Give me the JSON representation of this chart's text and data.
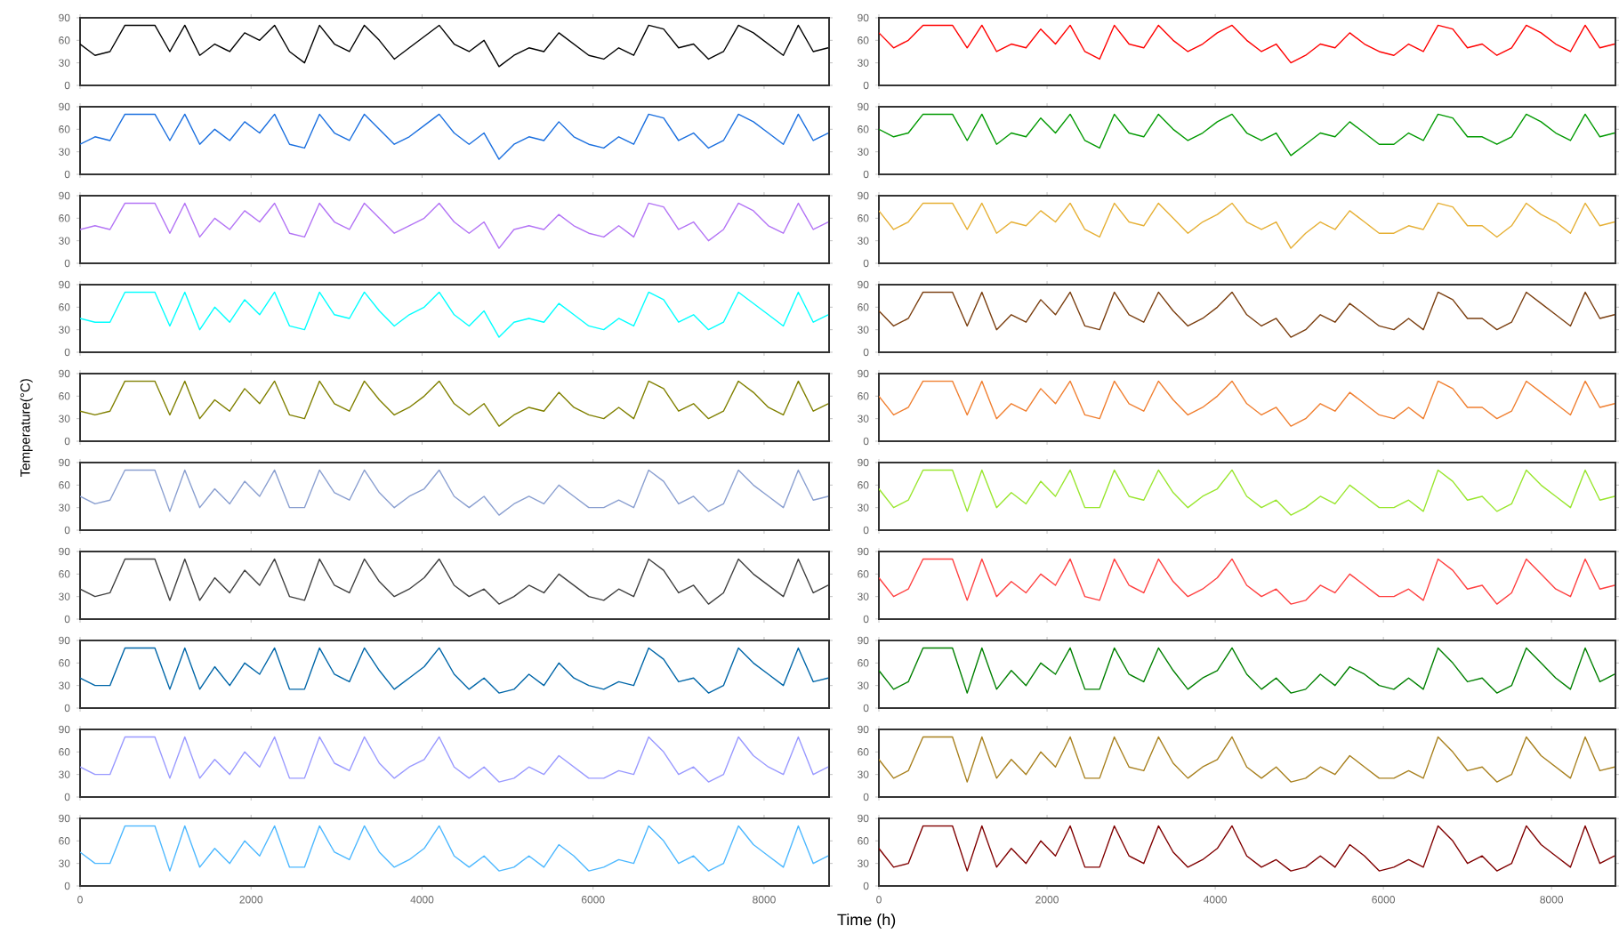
{
  "chart_data": [
    {
      "type": "line",
      "color": "#000000",
      "x": [
        0,
        175,
        350,
        525,
        700,
        875,
        1050,
        1225,
        1400,
        1575,
        1750,
        1925,
        2100,
        2275,
        2450,
        2625,
        2800,
        2975,
        3150,
        3325,
        3500,
        3675,
        3850,
        4025,
        4200,
        4375,
        4550,
        4725,
        4900,
        5075,
        5250,
        5425,
        5600,
        5775,
        5950,
        6125,
        6300,
        6475,
        6650,
        6825,
        7000,
        7175,
        7350,
        7525,
        7700,
        7875,
        8050,
        8225,
        8400,
        8575,
        8750
      ],
      "values": [
        55,
        40,
        45,
        80,
        80,
        80,
        45,
        80,
        40,
        55,
        45,
        70,
        60,
        80,
        45,
        30,
        80,
        55,
        45,
        80,
        60,
        35,
        50,
        65,
        80,
        55,
        45,
        60,
        25,
        40,
        50,
        45,
        70,
        55,
        40,
        35,
        50,
        40,
        80,
        75,
        50,
        55,
        35,
        45,
        80,
        70,
        55,
        40,
        80,
        45,
        50
      ],
      "xlim": [
        0,
        8760
      ],
      "ylim": [
        0,
        90
      ],
      "xticks": [
        0,
        2000,
        4000,
        6000,
        8000
      ],
      "yticks": [
        0,
        30,
        60,
        90
      ],
      "tick_labels": "y"
    },
    {
      "type": "line",
      "color": "#ff0000",
      "x": [
        0,
        175,
        350,
        525,
        700,
        875,
        1050,
        1225,
        1400,
        1575,
        1750,
        1925,
        2100,
        2275,
        2450,
        2625,
        2800,
        2975,
        3150,
        3325,
        3500,
        3675,
        3850,
        4025,
        4200,
        4375,
        4550,
        4725,
        4900,
        5075,
        5250,
        5425,
        5600,
        5775,
        5950,
        6125,
        6300,
        6475,
        6650,
        6825,
        7000,
        7175,
        7350,
        7525,
        7700,
        7875,
        8050,
        8225,
        8400,
        8575,
        8750
      ],
      "values": [
        70,
        50,
        60,
        80,
        80,
        80,
        50,
        80,
        45,
        55,
        50,
        75,
        55,
        80,
        45,
        35,
        80,
        55,
        50,
        80,
        60,
        45,
        55,
        70,
        80,
        60,
        45,
        55,
        30,
        40,
        55,
        50,
        70,
        55,
        45,
        40,
        55,
        45,
        80,
        75,
        50,
        55,
        40,
        50,
        80,
        70,
        55,
        45,
        80,
        50,
        55
      ],
      "xlim": [
        0,
        8760
      ],
      "ylim": [
        0,
        90
      ],
      "xticks": [
        0,
        2000,
        4000,
        6000,
        8000
      ],
      "yticks": [
        0,
        30,
        60,
        90
      ],
      "tick_labels": "y"
    },
    {
      "type": "line",
      "color": "#1a6fdf",
      "x": [
        0,
        175,
        350,
        525,
        700,
        875,
        1050,
        1225,
        1400,
        1575,
        1750,
        1925,
        2100,
        2275,
        2450,
        2625,
        2800,
        2975,
        3150,
        3325,
        3500,
        3675,
        3850,
        4025,
        4200,
        4375,
        4550,
        4725,
        4900,
        5075,
        5250,
        5425,
        5600,
        5775,
        5950,
        6125,
        6300,
        6475,
        6650,
        6825,
        7000,
        7175,
        7350,
        7525,
        7700,
        7875,
        8050,
        8225,
        8400,
        8575,
        8750
      ],
      "values": [
        40,
        50,
        45,
        80,
        80,
        80,
        45,
        80,
        40,
        60,
        45,
        70,
        55,
        80,
        40,
        35,
        80,
        55,
        45,
        80,
        60,
        40,
        50,
        65,
        80,
        55,
        40,
        55,
        20,
        40,
        50,
        45,
        70,
        50,
        40,
        35,
        50,
        40,
        80,
        75,
        45,
        55,
        35,
        45,
        80,
        70,
        55,
        40,
        80,
        45,
        55
      ],
      "xlim": [
        0,
        8760
      ],
      "ylim": [
        0,
        90
      ],
      "xticks": [
        0,
        2000,
        4000,
        6000,
        8000
      ],
      "yticks": [
        0,
        30,
        60,
        90
      ],
      "tick_labels": "y"
    },
    {
      "type": "line",
      "color": "#009900",
      "x": [
        0,
        175,
        350,
        525,
        700,
        875,
        1050,
        1225,
        1400,
        1575,
        1750,
        1925,
        2100,
        2275,
        2450,
        2625,
        2800,
        2975,
        3150,
        3325,
        3500,
        3675,
        3850,
        4025,
        4200,
        4375,
        4550,
        4725,
        4900,
        5075,
        5250,
        5425,
        5600,
        5775,
        5950,
        6125,
        6300,
        6475,
        6650,
        6825,
        7000,
        7175,
        7350,
        7525,
        7700,
        7875,
        8050,
        8225,
        8400,
        8575,
        8750
      ],
      "values": [
        60,
        50,
        55,
        80,
        80,
        80,
        45,
        80,
        40,
        55,
        50,
        75,
        55,
        80,
        45,
        35,
        80,
        55,
        50,
        80,
        60,
        45,
        55,
        70,
        80,
        55,
        45,
        55,
        25,
        40,
        55,
        50,
        70,
        55,
        40,
        40,
        55,
        45,
        80,
        75,
        50,
        50,
        40,
        50,
        80,
        70,
        55,
        45,
        80,
        50,
        55
      ],
      "xlim": [
        0,
        8760
      ],
      "ylim": [
        0,
        90
      ],
      "xticks": [
        0,
        2000,
        4000,
        6000,
        8000
      ],
      "yticks": [
        0,
        30,
        60,
        90
      ],
      "tick_labels": "y"
    },
    {
      "type": "line",
      "color": "#b374f5",
      "x": [
        0,
        175,
        350,
        525,
        700,
        875,
        1050,
        1225,
        1400,
        1575,
        1750,
        1925,
        2100,
        2275,
        2450,
        2625,
        2800,
        2975,
        3150,
        3325,
        3500,
        3675,
        3850,
        4025,
        4200,
        4375,
        4550,
        4725,
        4900,
        5075,
        5250,
        5425,
        5600,
        5775,
        5950,
        6125,
        6300,
        6475,
        6650,
        6825,
        7000,
        7175,
        7350,
        7525,
        7700,
        7875,
        8050,
        8225,
        8400,
        8575,
        8750
      ],
      "values": [
        45,
        50,
        45,
        80,
        80,
        80,
        40,
        80,
        35,
        60,
        45,
        70,
        55,
        80,
        40,
        35,
        80,
        55,
        45,
        80,
        60,
        40,
        50,
        60,
        80,
        55,
        40,
        55,
        20,
        45,
        50,
        45,
        65,
        50,
        40,
        35,
        50,
        35,
        80,
        75,
        45,
        55,
        30,
        45,
        80,
        70,
        50,
        40,
        80,
        45,
        55
      ],
      "xlim": [
        0,
        8760
      ],
      "ylim": [
        0,
        90
      ],
      "xticks": [
        0,
        2000,
        4000,
        6000,
        8000
      ],
      "yticks": [
        0,
        30,
        60,
        90
      ],
      "tick_labels": "y"
    },
    {
      "type": "line",
      "color": "#e6b035",
      "x": [
        0,
        175,
        350,
        525,
        700,
        875,
        1050,
        1225,
        1400,
        1575,
        1750,
        1925,
        2100,
        2275,
        2450,
        2625,
        2800,
        2975,
        3150,
        3325,
        3500,
        3675,
        3850,
        4025,
        4200,
        4375,
        4550,
        4725,
        4900,
        5075,
        5250,
        5425,
        5600,
        5775,
        5950,
        6125,
        6300,
        6475,
        6650,
        6825,
        7000,
        7175,
        7350,
        7525,
        7700,
        7875,
        8050,
        8225,
        8400,
        8575,
        8750
      ],
      "values": [
        70,
        45,
        55,
        80,
        80,
        80,
        45,
        80,
        40,
        55,
        50,
        70,
        55,
        80,
        45,
        35,
        80,
        55,
        50,
        80,
        60,
        40,
        55,
        65,
        80,
        55,
        45,
        55,
        20,
        40,
        55,
        45,
        70,
        55,
        40,
        40,
        50,
        45,
        80,
        75,
        50,
        50,
        35,
        50,
        80,
        65,
        55,
        40,
        80,
        50,
        55
      ],
      "xlim": [
        0,
        8760
      ],
      "ylim": [
        0,
        90
      ],
      "xticks": [
        0,
        2000,
        4000,
        6000,
        8000
      ],
      "yticks": [
        0,
        30,
        60,
        90
      ],
      "tick_labels": "y"
    },
    {
      "type": "line",
      "color": "#00ffff",
      "x": [
        0,
        175,
        350,
        525,
        700,
        875,
        1050,
        1225,
        1400,
        1575,
        1750,
        1925,
        2100,
        2275,
        2450,
        2625,
        2800,
        2975,
        3150,
        3325,
        3500,
        3675,
        3850,
        4025,
        4200,
        4375,
        4550,
        4725,
        4900,
        5075,
        5250,
        5425,
        5600,
        5775,
        5950,
        6125,
        6300,
        6475,
        6650,
        6825,
        7000,
        7175,
        7350,
        7525,
        7700,
        7875,
        8050,
        8225,
        8400,
        8575,
        8750
      ],
      "values": [
        45,
        40,
        40,
        80,
        80,
        80,
        35,
        80,
        30,
        60,
        40,
        70,
        50,
        80,
        35,
        30,
        80,
        50,
        45,
        80,
        55,
        35,
        50,
        60,
        80,
        50,
        35,
        55,
        20,
        40,
        45,
        40,
        65,
        50,
        35,
        30,
        45,
        35,
        80,
        70,
        40,
        50,
        30,
        40,
        80,
        65,
        50,
        35,
        80,
        40,
        50
      ],
      "xlim": [
        0,
        8760
      ],
      "ylim": [
        0,
        90
      ],
      "xticks": [
        0,
        2000,
        4000,
        6000,
        8000
      ],
      "yticks": [
        0,
        30,
        60,
        90
      ],
      "tick_labels": "y"
    },
    {
      "type": "line",
      "color": "#7a3e0f",
      "x": [
        0,
        175,
        350,
        525,
        700,
        875,
        1050,
        1225,
        1400,
        1575,
        1750,
        1925,
        2100,
        2275,
        2450,
        2625,
        2800,
        2975,
        3150,
        3325,
        3500,
        3675,
        3850,
        4025,
        4200,
        4375,
        4550,
        4725,
        4900,
        5075,
        5250,
        5425,
        5600,
        5775,
        5950,
        6125,
        6300,
        6475,
        6650,
        6825,
        7000,
        7175,
        7350,
        7525,
        7700,
        7875,
        8050,
        8225,
        8400,
        8575,
        8750
      ],
      "values": [
        55,
        35,
        45,
        80,
        80,
        80,
        35,
        80,
        30,
        50,
        40,
        70,
        50,
        80,
        35,
        30,
        80,
        50,
        40,
        80,
        55,
        35,
        45,
        60,
        80,
        50,
        35,
        45,
        20,
        30,
        50,
        40,
        65,
        50,
        35,
        30,
        45,
        30,
        80,
        70,
        45,
        45,
        30,
        40,
        80,
        65,
        50,
        35,
        80,
        45,
        50
      ],
      "xlim": [
        0,
        8760
      ],
      "ylim": [
        0,
        90
      ],
      "xticks": [
        0,
        2000,
        4000,
        6000,
        8000
      ],
      "yticks": [
        0,
        30,
        60,
        90
      ],
      "tick_labels": "y"
    },
    {
      "type": "line",
      "color": "#808000",
      "x": [
        0,
        175,
        350,
        525,
        700,
        875,
        1050,
        1225,
        1400,
        1575,
        1750,
        1925,
        2100,
        2275,
        2450,
        2625,
        2800,
        2975,
        3150,
        3325,
        3500,
        3675,
        3850,
        4025,
        4200,
        4375,
        4550,
        4725,
        4900,
        5075,
        5250,
        5425,
        5600,
        5775,
        5950,
        6125,
        6300,
        6475,
        6650,
        6825,
        7000,
        7175,
        7350,
        7525,
        7700,
        7875,
        8050,
        8225,
        8400,
        8575,
        8750
      ],
      "values": [
        40,
        35,
        40,
        80,
        80,
        80,
        35,
        80,
        30,
        55,
        40,
        70,
        50,
        80,
        35,
        30,
        80,
        50,
        40,
        80,
        55,
        35,
        45,
        60,
        80,
        50,
        35,
        50,
        20,
        35,
        45,
        40,
        65,
        45,
        35,
        30,
        45,
        30,
        80,
        70,
        40,
        50,
        30,
        40,
        80,
        65,
        45,
        35,
        80,
        40,
        50
      ],
      "xlim": [
        0,
        8760
      ],
      "ylim": [
        0,
        90
      ],
      "xticks": [
        0,
        2000,
        4000,
        6000,
        8000
      ],
      "yticks": [
        0,
        30,
        60,
        90
      ],
      "tick_labels": "y",
      "ylabel": "Temperature(°C)"
    },
    {
      "type": "line",
      "color": "#f07f30",
      "x": [
        0,
        175,
        350,
        525,
        700,
        875,
        1050,
        1225,
        1400,
        1575,
        1750,
        1925,
        2100,
        2275,
        2450,
        2625,
        2800,
        2975,
        3150,
        3325,
        3500,
        3675,
        3850,
        4025,
        4200,
        4375,
        4550,
        4725,
        4900,
        5075,
        5250,
        5425,
        5600,
        5775,
        5950,
        6125,
        6300,
        6475,
        6650,
        6825,
        7000,
        7175,
        7350,
        7525,
        7700,
        7875,
        8050,
        8225,
        8400,
        8575,
        8750
      ],
      "values": [
        60,
        35,
        45,
        80,
        80,
        80,
        35,
        80,
        30,
        50,
        40,
        70,
        50,
        80,
        35,
        30,
        80,
        50,
        40,
        80,
        55,
        35,
        45,
        60,
        80,
        50,
        35,
        45,
        20,
        30,
        50,
        40,
        65,
        50,
        35,
        30,
        45,
        30,
        80,
        70,
        45,
        45,
        30,
        40,
        80,
        65,
        50,
        35,
        80,
        45,
        50
      ],
      "xlim": [
        0,
        8760
      ],
      "ylim": [
        0,
        90
      ],
      "xticks": [
        0,
        2000,
        4000,
        6000,
        8000
      ],
      "yticks": [
        0,
        30,
        60,
        90
      ],
      "tick_labels": "y"
    },
    {
      "type": "line",
      "color": "#8a9fd0",
      "x": [
        0,
        175,
        350,
        525,
        700,
        875,
        1050,
        1225,
        1400,
        1575,
        1750,
        1925,
        2100,
        2275,
        2450,
        2625,
        2800,
        2975,
        3150,
        3325,
        3500,
        3675,
        3850,
        4025,
        4200,
        4375,
        4550,
        4725,
        4900,
        5075,
        5250,
        5425,
        5600,
        5775,
        5950,
        6125,
        6300,
        6475,
        6650,
        6825,
        7000,
        7175,
        7350,
        7525,
        7700,
        7875,
        8050,
        8225,
        8400,
        8575,
        8750
      ],
      "values": [
        45,
        35,
        40,
        80,
        80,
        80,
        25,
        80,
        30,
        55,
        35,
        65,
        45,
        80,
        30,
        30,
        80,
        50,
        40,
        80,
        50,
        30,
        45,
        55,
        80,
        45,
        30,
        45,
        20,
        35,
        45,
        35,
        60,
        45,
        30,
        30,
        40,
        30,
        80,
        65,
        35,
        45,
        25,
        35,
        80,
        60,
        45,
        30,
        80,
        40,
        45
      ],
      "xlim": [
        0,
        8760
      ],
      "ylim": [
        0,
        90
      ],
      "xticks": [
        0,
        2000,
        4000,
        6000,
        8000
      ],
      "yticks": [
        0,
        30,
        60,
        90
      ],
      "tick_labels": "y"
    },
    {
      "type": "line",
      "color": "#99e62e",
      "x": [
        0,
        175,
        350,
        525,
        700,
        875,
        1050,
        1225,
        1400,
        1575,
        1750,
        1925,
        2100,
        2275,
        2450,
        2625,
        2800,
        2975,
        3150,
        3325,
        3500,
        3675,
        3850,
        4025,
        4200,
        4375,
        4550,
        4725,
        4900,
        5075,
        5250,
        5425,
        5600,
        5775,
        5950,
        6125,
        6300,
        6475,
        6650,
        6825,
        7000,
        7175,
        7350,
        7525,
        7700,
        7875,
        8050,
        8225,
        8400,
        8575,
        8750
      ],
      "values": [
        55,
        30,
        40,
        80,
        80,
        80,
        25,
        80,
        30,
        50,
        35,
        65,
        45,
        80,
        30,
        30,
        80,
        45,
        40,
        80,
        50,
        30,
        45,
        55,
        80,
        45,
        30,
        40,
        20,
        30,
        45,
        35,
        60,
        45,
        30,
        30,
        40,
        25,
        80,
        65,
        40,
        45,
        25,
        35,
        80,
        60,
        45,
        30,
        80,
        40,
        45
      ],
      "xlim": [
        0,
        8760
      ],
      "ylim": [
        0,
        90
      ],
      "xticks": [
        0,
        2000,
        4000,
        6000,
        8000
      ],
      "yticks": [
        0,
        30,
        60,
        90
      ],
      "tick_labels": "y"
    },
    {
      "type": "line",
      "color": "#404040",
      "x": [
        0,
        175,
        350,
        525,
        700,
        875,
        1050,
        1225,
        1400,
        1575,
        1750,
        1925,
        2100,
        2275,
        2450,
        2625,
        2800,
        2975,
        3150,
        3325,
        3500,
        3675,
        3850,
        4025,
        4200,
        4375,
        4550,
        4725,
        4900,
        5075,
        5250,
        5425,
        5600,
        5775,
        5950,
        6125,
        6300,
        6475,
        6650,
        6825,
        7000,
        7175,
        7350,
        7525,
        7700,
        7875,
        8050,
        8225,
        8400,
        8575,
        8750
      ],
      "values": [
        40,
        30,
        35,
        80,
        80,
        80,
        25,
        80,
        25,
        55,
        35,
        65,
        45,
        80,
        30,
        25,
        80,
        45,
        35,
        80,
        50,
        30,
        40,
        55,
        80,
        45,
        30,
        40,
        20,
        30,
        45,
        35,
        60,
        45,
        30,
        25,
        40,
        30,
        80,
        65,
        35,
        45,
        20,
        35,
        80,
        60,
        45,
        30,
        80,
        35,
        45
      ],
      "xlim": [
        0,
        8760
      ],
      "ylim": [
        0,
        90
      ],
      "xticks": [
        0,
        2000,
        4000,
        6000,
        8000
      ],
      "yticks": [
        0,
        30,
        60,
        90
      ],
      "tick_labels": "y"
    },
    {
      "type": "line",
      "color": "#ff4040",
      "x": [
        0,
        175,
        350,
        525,
        700,
        875,
        1050,
        1225,
        1400,
        1575,
        1750,
        1925,
        2100,
        2275,
        2450,
        2625,
        2800,
        2975,
        3150,
        3325,
        3500,
        3675,
        3850,
        4025,
        4200,
        4375,
        4550,
        4725,
        4900,
        5075,
        5250,
        5425,
        5600,
        5775,
        5950,
        6125,
        6300,
        6475,
        6650,
        6825,
        7000,
        7175,
        7350,
        7525,
        7700,
        7875,
        8050,
        8225,
        8400,
        8575,
        8750
      ],
      "values": [
        55,
        30,
        40,
        80,
        80,
        80,
        25,
        80,
        30,
        50,
        35,
        60,
        45,
        80,
        30,
        25,
        80,
        45,
        35,
        80,
        50,
        30,
        40,
        55,
        80,
        45,
        30,
        40,
        20,
        25,
        45,
        35,
        60,
        45,
        30,
        30,
        40,
        25,
        80,
        65,
        40,
        45,
        20,
        35,
        80,
        60,
        40,
        30,
        80,
        40,
        45
      ],
      "xlim": [
        0,
        8760
      ],
      "ylim": [
        0,
        90
      ],
      "xticks": [
        0,
        2000,
        4000,
        6000,
        8000
      ],
      "yticks": [
        0,
        30,
        60,
        90
      ],
      "tick_labels": "y"
    },
    {
      "type": "line",
      "color": "#0066a8",
      "x": [
        0,
        175,
        350,
        525,
        700,
        875,
        1050,
        1225,
        1400,
        1575,
        1750,
        1925,
        2100,
        2275,
        2450,
        2625,
        2800,
        2975,
        3150,
        3325,
        3500,
        3675,
        3850,
        4025,
        4200,
        4375,
        4550,
        4725,
        4900,
        5075,
        5250,
        5425,
        5600,
        5775,
        5950,
        6125,
        6300,
        6475,
        6650,
        6825,
        7000,
        7175,
        7350,
        7525,
        7700,
        7875,
        8050,
        8225,
        8400,
        8575,
        8750
      ],
      "values": [
        40,
        30,
        30,
        80,
        80,
        80,
        25,
        80,
        25,
        55,
        30,
        60,
        45,
        80,
        25,
        25,
        80,
        45,
        35,
        80,
        50,
        25,
        40,
        55,
        80,
        45,
        25,
        40,
        20,
        25,
        45,
        30,
        60,
        40,
        30,
        25,
        35,
        30,
        80,
        65,
        35,
        40,
        20,
        30,
        80,
        60,
        45,
        30,
        80,
        35,
        40
      ],
      "xlim": [
        0,
        8760
      ],
      "ylim": [
        0,
        90
      ],
      "xticks": [
        0,
        2000,
        4000,
        6000,
        8000
      ],
      "yticks": [
        0,
        30,
        60,
        90
      ],
      "tick_labels": "y"
    },
    {
      "type": "line",
      "color": "#008000",
      "x": [
        0,
        175,
        350,
        525,
        700,
        875,
        1050,
        1225,
        1400,
        1575,
        1750,
        1925,
        2100,
        2275,
        2450,
        2625,
        2800,
        2975,
        3150,
        3325,
        3500,
        3675,
        3850,
        4025,
        4200,
        4375,
        4550,
        4725,
        4900,
        5075,
        5250,
        5425,
        5600,
        5775,
        5950,
        6125,
        6300,
        6475,
        6650,
        6825,
        7000,
        7175,
        7350,
        7525,
        7700,
        7875,
        8050,
        8225,
        8400,
        8575,
        8750
      ],
      "values": [
        50,
        25,
        35,
        80,
        80,
        80,
        20,
        80,
        25,
        50,
        30,
        60,
        45,
        80,
        25,
        25,
        80,
        45,
        35,
        80,
        50,
        25,
        40,
        50,
        80,
        45,
        25,
        40,
        20,
        25,
        45,
        30,
        55,
        45,
        30,
        25,
        40,
        25,
        80,
        60,
        35,
        40,
        20,
        30,
        80,
        60,
        40,
        25,
        80,
        35,
        45
      ],
      "xlim": [
        0,
        8760
      ],
      "ylim": [
        0,
        90
      ],
      "xticks": [
        0,
        2000,
        4000,
        6000,
        8000
      ],
      "yticks": [
        0,
        30,
        60,
        90
      ],
      "tick_labels": "y"
    },
    {
      "type": "line",
      "color": "#9999ff",
      "x": [
        0,
        175,
        350,
        525,
        700,
        875,
        1050,
        1225,
        1400,
        1575,
        1750,
        1925,
        2100,
        2275,
        2450,
        2625,
        2800,
        2975,
        3150,
        3325,
        3500,
        3675,
        3850,
        4025,
        4200,
        4375,
        4550,
        4725,
        4900,
        5075,
        5250,
        5425,
        5600,
        5775,
        5950,
        6125,
        6300,
        6475,
        6650,
        6825,
        7000,
        7175,
        7350,
        7525,
        7700,
        7875,
        8050,
        8225,
        8400,
        8575,
        8750
      ],
      "values": [
        40,
        30,
        30,
        80,
        80,
        80,
        25,
        80,
        25,
        50,
        30,
        60,
        40,
        80,
        25,
        25,
        80,
        45,
        35,
        80,
        45,
        25,
        40,
        50,
        80,
        40,
        25,
        40,
        20,
        25,
        40,
        30,
        55,
        40,
        25,
        25,
        35,
        30,
        80,
        60,
        30,
        40,
        20,
        30,
        80,
        55,
        40,
        30,
        80,
        30,
        40
      ],
      "xlim": [
        0,
        8760
      ],
      "ylim": [
        0,
        90
      ],
      "xticks": [
        0,
        2000,
        4000,
        6000,
        8000
      ],
      "yticks": [
        0,
        30,
        60,
        90
      ],
      "tick_labels": "y"
    },
    {
      "type": "line",
      "color": "#a8801e",
      "x": [
        0,
        175,
        350,
        525,
        700,
        875,
        1050,
        1225,
        1400,
        1575,
        1750,
        1925,
        2100,
        2275,
        2450,
        2625,
        2800,
        2975,
        3150,
        3325,
        3500,
        3675,
        3850,
        4025,
        4200,
        4375,
        4550,
        4725,
        4900,
        5075,
        5250,
        5425,
        5600,
        5775,
        5950,
        6125,
        6300,
        6475,
        6650,
        6825,
        7000,
        7175,
        7350,
        7525,
        7700,
        7875,
        8050,
        8225,
        8400,
        8575,
        8750
      ],
      "values": [
        50,
        25,
        35,
        80,
        80,
        80,
        20,
        80,
        25,
        50,
        30,
        60,
        40,
        80,
        25,
        25,
        80,
        40,
        35,
        80,
        45,
        25,
        40,
        50,
        80,
        40,
        25,
        40,
        20,
        25,
        40,
        30,
        55,
        40,
        25,
        25,
        35,
        25,
        80,
        60,
        35,
        40,
        20,
        30,
        80,
        55,
        40,
        25,
        80,
        35,
        40
      ],
      "xlim": [
        0,
        8760
      ],
      "ylim": [
        0,
        90
      ],
      "xticks": [
        0,
        2000,
        4000,
        6000,
        8000
      ],
      "yticks": [
        0,
        30,
        60,
        90
      ],
      "tick_labels": "y"
    },
    {
      "type": "line",
      "color": "#4db8ff",
      "x": [
        0,
        175,
        350,
        525,
        700,
        875,
        1050,
        1225,
        1400,
        1575,
        1750,
        1925,
        2100,
        2275,
        2450,
        2625,
        2800,
        2975,
        3150,
        3325,
        3500,
        3675,
        3850,
        4025,
        4200,
        4375,
        4550,
        4725,
        4900,
        5075,
        5250,
        5425,
        5600,
        5775,
        5950,
        6125,
        6300,
        6475,
        6650,
        6825,
        7000,
        7175,
        7350,
        7525,
        7700,
        7875,
        8050,
        8225,
        8400,
        8575,
        8750
      ],
      "values": [
        45,
        30,
        30,
        80,
        80,
        80,
        20,
        80,
        25,
        50,
        30,
        60,
        40,
        80,
        25,
        25,
        80,
        45,
        35,
        80,
        45,
        25,
        35,
        50,
        80,
        40,
        25,
        40,
        20,
        25,
        40,
        25,
        55,
        40,
        20,
        25,
        35,
        30,
        80,
        60,
        30,
        40,
        20,
        30,
        80,
        55,
        40,
        25,
        80,
        30,
        40
      ],
      "xlim": [
        0,
        8760
      ],
      "ylim": [
        0,
        90
      ],
      "xticks": [
        0,
        2000,
        4000,
        6000,
        8000
      ],
      "yticks": [
        0,
        30,
        60,
        90
      ],
      "xlabel": "Time (h)"
    },
    {
      "type": "line",
      "color": "#800000",
      "x": [
        0,
        175,
        350,
        525,
        700,
        875,
        1050,
        1225,
        1400,
        1575,
        1750,
        1925,
        2100,
        2275,
        2450,
        2625,
        2800,
        2975,
        3150,
        3325,
        3500,
        3675,
        3850,
        4025,
        4200,
        4375,
        4550,
        4725,
        4900,
        5075,
        5250,
        5425,
        5600,
        5775,
        5950,
        6125,
        6300,
        6475,
        6650,
        6825,
        7000,
        7175,
        7350,
        7525,
        7700,
        7875,
        8050,
        8225,
        8400,
        8575,
        8750
      ],
      "values": [
        50,
        25,
        30,
        80,
        80,
        80,
        20,
        80,
        25,
        50,
        30,
        60,
        40,
        80,
        25,
        25,
        80,
        40,
        30,
        80,
        45,
        25,
        35,
        50,
        80,
        40,
        25,
        35,
        20,
        25,
        40,
        25,
        55,
        40,
        20,
        25,
        35,
        25,
        80,
        60,
        30,
        40,
        20,
        30,
        80,
        55,
        40,
        25,
        80,
        30,
        40
      ],
      "xlim": [
        0,
        8760
      ],
      "ylim": [
        0,
        90
      ],
      "xticks": [
        0,
        2000,
        4000,
        6000,
        8000
      ],
      "yticks": [
        0,
        30,
        60,
        90
      ]
    }
  ]
}
